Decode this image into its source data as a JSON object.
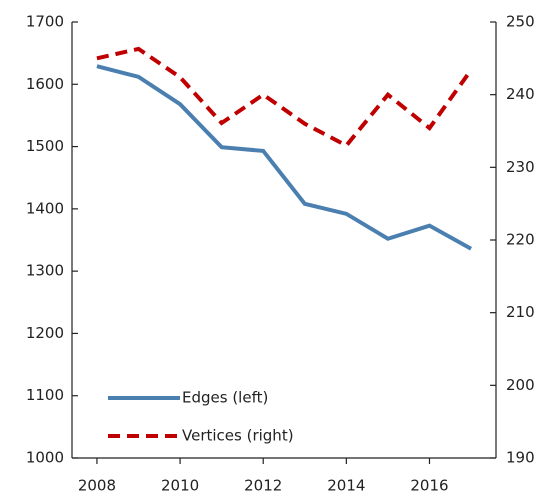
{
  "chart_data": {
    "type": "line",
    "x": [
      2008,
      2009,
      2010,
      2011,
      2012,
      2013,
      2014,
      2015,
      2016,
      2017
    ],
    "xlim": [
      2007.4,
      2017.6
    ],
    "xticks": [
      2008,
      2010,
      2012,
      2014,
      2016
    ],
    "ylim": [
      1000,
      1700
    ],
    "yticks": [
      1000,
      1100,
      1200,
      1300,
      1400,
      1500,
      1600,
      1700
    ],
    "y2lim": [
      190,
      250
    ],
    "y2ticks": [
      190,
      200,
      210,
      220,
      230,
      240,
      250
    ],
    "series": [
      {
        "name": "Edges (left)",
        "color": "#4a7fb0",
        "dashed": false,
        "values": [
          1629,
          1612,
          1568,
          1499,
          1493,
          1408,
          1392,
          1352,
          1373,
          1336
        ]
      },
      {
        "name": "Vertices (right)",
        "color": "#c00000",
        "dashed": true,
        "axis": "y2",
        "values": [
          245,
          246.3,
          242.4,
          236.1,
          240,
          236,
          233,
          240,
          235.4,
          243.4
        ]
      }
    ]
  }
}
